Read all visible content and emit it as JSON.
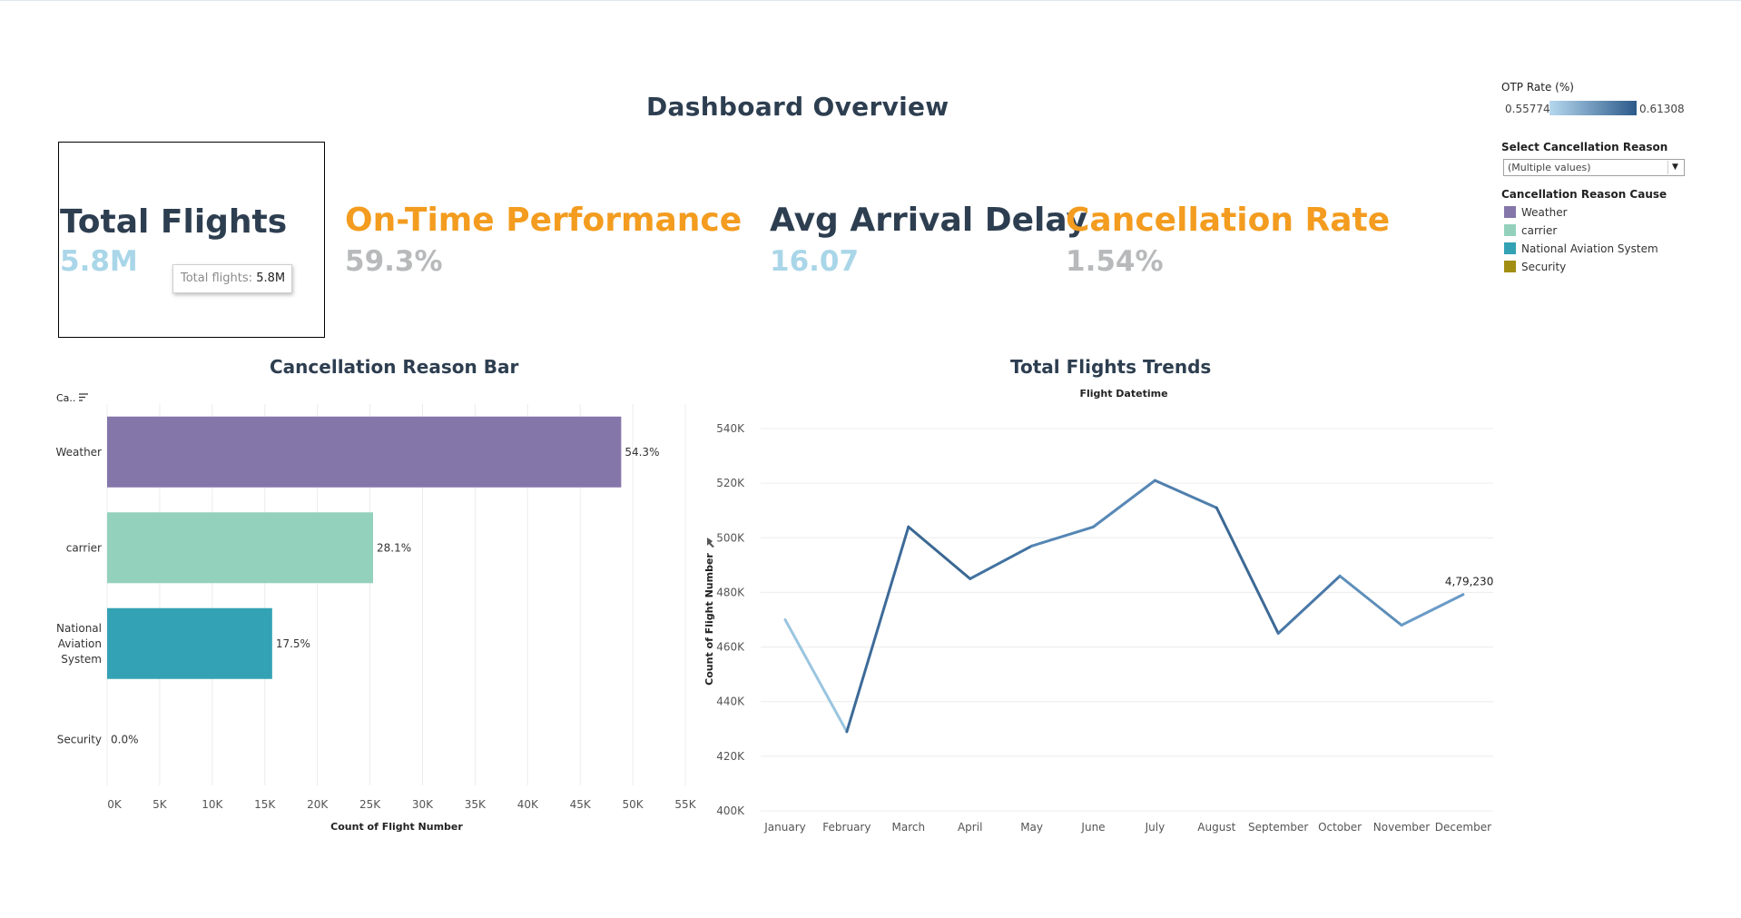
{
  "dashboard": {
    "title": "Dashboard Overview"
  },
  "kpis": {
    "total_flights": {
      "label": "Total Flights",
      "value": "5.8M"
    },
    "otp": {
      "label": "On-Time Performance",
      "value": "59.3%"
    },
    "avg_delay": {
      "label": "Avg Arrival Delay",
      "value": "16.07"
    },
    "cancel_rate": {
      "label": "Cancellation Rate",
      "value": "1.54%"
    }
  },
  "tooltip": {
    "key": "Total flights:",
    "value": "5.8M"
  },
  "legend": {
    "otp_title": "OTP Rate (%)",
    "otp_min": "0.55774",
    "otp_max": "0.61308",
    "filter_title": "Select Cancellation Reason",
    "filter_value": "(Multiple values)",
    "cause_title": "Cancellation Reason Cause",
    "items": [
      {
        "label": "Weather",
        "color": "#8576aa"
      },
      {
        "label": "carrier",
        "color": "#94d1bd"
      },
      {
        "label": "National Aviation System",
        "color": "#33a2b4"
      },
      {
        "label": "Security",
        "color": "#a18e13"
      }
    ]
  },
  "chart_data": [
    {
      "type": "bar",
      "title": "Cancellation Reason Bar",
      "sort_label": "Ca..",
      "categories": [
        "Weather",
        "carrier",
        "National Aviation System",
        "Security"
      ],
      "category_lines": [
        [
          "Weather"
        ],
        [
          "carrier"
        ],
        [
          "National",
          "Aviation",
          "System"
        ],
        [
          "Security"
        ]
      ],
      "values": [
        48900,
        25300,
        15700,
        0
      ],
      "data_labels": [
        "54.3%",
        "28.1%",
        "17.5%",
        "0.0%"
      ],
      "colors": [
        "#8576aa",
        "#94d1bd",
        "#33a2b4",
        "#a18e13"
      ],
      "xlabel": "Count of Flight Number",
      "ylabel": "",
      "xlim": [
        0,
        55000
      ],
      "xticks": [
        "0K",
        "5K",
        "10K",
        "15K",
        "20K",
        "25K",
        "30K",
        "35K",
        "40K",
        "45K",
        "50K",
        "55K"
      ],
      "orientation": "horizontal",
      "grid": true
    },
    {
      "type": "line",
      "title": "Total Flights Trends",
      "subtitle": "Flight Datetime",
      "x": [
        "January",
        "February",
        "March",
        "April",
        "May",
        "June",
        "July",
        "August",
        "September",
        "October",
        "November",
        "December"
      ],
      "values": [
        470000,
        429000,
        504000,
        485000,
        497000,
        504000,
        521000,
        511000,
        465000,
        486000,
        468000,
        479230
      ],
      "colors": [
        "#a6cce3",
        "#9ac5df",
        "#3d6b98",
        "#3a6893",
        "#4172a1",
        "#5586b4",
        "#5888b6",
        "#4f7fad",
        "#3c6996",
        "#4a79a8",
        "#5d8eba",
        "#6a9bc7"
      ],
      "end_label": "4,79,230",
      "ylabel": "Count of Flight Number",
      "ylim": [
        400000,
        540000
      ],
      "yticks": [
        "400K",
        "420K",
        "440K",
        "460K",
        "480K",
        "500K",
        "520K",
        "540K"
      ],
      "grid": true
    }
  ]
}
